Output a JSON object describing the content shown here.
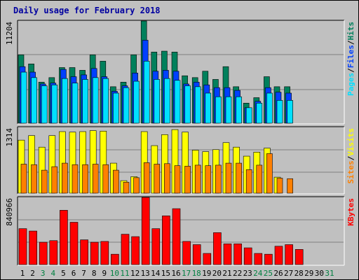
{
  "title": "Daily usage for February 2018",
  "colors": {
    "hits": "#00805c",
    "files": "#0040ff",
    "pages": "#00e0ff",
    "visits": "#ffff00",
    "sites": "#ff8000",
    "kbytes": "#ff0000",
    "panel": "#c0c0c0",
    "weekend_label": "#008040",
    "weekday_label": "#000000"
  },
  "chart_data": [
    {
      "type": "bar",
      "panel": "top",
      "y_max_label": "11204",
      "ylim": [
        0,
        11204
      ],
      "grid": true,
      "series_labels": [
        "Pages",
        "/",
        "Files",
        "/",
        "Hits"
      ],
      "categories": [
        "1",
        "2",
        "3",
        "4",
        "5",
        "6",
        "7",
        "8",
        "9",
        "10",
        "11",
        "12",
        "13",
        "14",
        "15",
        "16",
        "17",
        "18",
        "19",
        "20",
        "21",
        "22",
        "23",
        "24",
        "25",
        "26",
        "27",
        "28",
        "29",
        "30",
        "31"
      ],
      "series": [
        {
          "name": "Hits",
          "values": [
            7500,
            6500,
            4500,
            5000,
            6100,
            6100,
            5800,
            7500,
            6800,
            4000,
            4500,
            7500,
            11204,
            7800,
            7900,
            7800,
            5200,
            5000,
            5700,
            4800,
            6200,
            4000,
            2200,
            2800,
            5100,
            4000,
            4000,
            0,
            0,
            0,
            0
          ]
        },
        {
          "name": "Files",
          "values": [
            6200,
            5600,
            4300,
            4400,
            5900,
            5100,
            5300,
            6000,
            5100,
            3500,
            4100,
            5500,
            9100,
            5700,
            5800,
            5700,
            4300,
            4500,
            4200,
            3900,
            3900,
            3600,
            1700,
            2400,
            3900,
            3400,
            3300,
            0,
            0,
            0,
            0
          ]
        },
        {
          "name": "Pages",
          "values": [
            5600,
            5000,
            4100,
            4200,
            4900,
            4400,
            4800,
            5000,
            4900,
            3300,
            3900,
            4600,
            6800,
            4800,
            4900,
            4700,
            4100,
            4000,
            3300,
            2900,
            2900,
            2900,
            1700,
            2200,
            3300,
            2500,
            2500,
            0,
            0,
            0,
            0
          ]
        }
      ]
    },
    {
      "type": "bar",
      "panel": "middle",
      "y_max_label": "1314",
      "ylim": [
        0,
        1314
      ],
      "grid": true,
      "series_labels": [
        "Sites",
        "/",
        "Visits"
      ],
      "categories": [
        "1",
        "2",
        "3",
        "4",
        "5",
        "6",
        "7",
        "8",
        "9",
        "10",
        "11",
        "12",
        "13",
        "14",
        "15",
        "16",
        "17",
        "18",
        "19",
        "20",
        "21",
        "22",
        "23",
        "24",
        "25",
        "26",
        "27",
        "28",
        "29",
        "30",
        "31"
      ],
      "series": [
        {
          "name": "Visits",
          "values": [
            1060,
            1150,
            920,
            1150,
            1230,
            1220,
            1230,
            1250,
            1240,
            600,
            250,
            330,
            1230,
            950,
            1170,
            1270,
            1220,
            860,
            830,
            870,
            1010,
            920,
            740,
            820,
            900,
            320,
            0,
            0,
            0,
            0,
            0
          ]
        },
        {
          "name": "Sites",
          "values": [
            580,
            570,
            460,
            530,
            600,
            570,
            570,
            580,
            570,
            460,
            220,
            310,
            610,
            580,
            590,
            550,
            540,
            560,
            550,
            560,
            600,
            600,
            470,
            560,
            790,
            300,
            290,
            0,
            0,
            0,
            0
          ]
        }
      ]
    },
    {
      "type": "bar",
      "panel": "bottom",
      "y_max_label": "840966",
      "ylim": [
        0,
        840966
      ],
      "grid": true,
      "series_labels": [
        "KBytes"
      ],
      "categories": [
        "1",
        "2",
        "3",
        "4",
        "5",
        "6",
        "7",
        "8",
        "9",
        "10",
        "11",
        "12",
        "13",
        "14",
        "15",
        "16",
        "17",
        "18",
        "19",
        "20",
        "21",
        "22",
        "23",
        "24",
        "25",
        "26",
        "27",
        "28",
        "29",
        "30",
        "31"
      ],
      "series": [
        {
          "name": "KBytes",
          "values": [
            450000,
            420000,
            280000,
            300000,
            680000,
            530000,
            310000,
            280000,
            290000,
            130000,
            380000,
            350000,
            840966,
            450000,
            610000,
            700000,
            290000,
            250000,
            140000,
            400000,
            260000,
            260000,
            210000,
            140000,
            130000,
            230000,
            250000,
            190000,
            0,
            0,
            0
          ]
        }
      ]
    }
  ],
  "x_labels": [
    "1",
    "2",
    "3",
    "4",
    "5",
    "6",
    "7",
    "8",
    "9",
    "10",
    "11",
    "12",
    "13",
    "14",
    "15",
    "16",
    "17",
    "18",
    "19",
    "20",
    "21",
    "22",
    "23",
    "24",
    "25",
    "26",
    "27",
    "28",
    "29",
    "30",
    "31"
  ],
  "weekend_days": [
    3,
    4,
    10,
    11,
    17,
    18,
    24,
    25,
    31
  ]
}
